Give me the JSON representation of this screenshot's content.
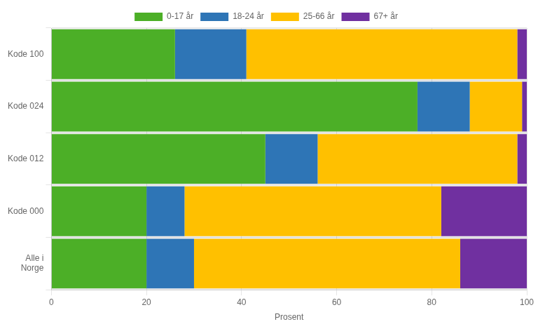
{
  "chart_data": {
    "type": "bar",
    "orientation": "horizontal",
    "stacked": true,
    "categories": [
      "Alle i\nNorge",
      "Kode 000",
      "Kode 012",
      "Kode 024",
      "Kode 100"
    ],
    "series": [
      {
        "name": "0-17 år",
        "color": "#4caf27",
        "values": [
          20,
          20,
          45,
          77,
          26
        ]
      },
      {
        "name": "18-24 år",
        "color": "#2e75b6",
        "values": [
          10,
          8,
          11,
          11,
          15
        ]
      },
      {
        "name": "25-66 år",
        "color": "#ffc000",
        "values": [
          56,
          54,
          42,
          11,
          57
        ]
      },
      {
        "name": "67+ år",
        "color": "#7030a0",
        "values": [
          14,
          18,
          2,
          1,
          2
        ]
      }
    ],
    "xlabel": "Prosent",
    "xlim": [
      0,
      100
    ],
    "xticks": [
      0,
      20,
      40,
      60,
      80,
      100
    ],
    "grid": true,
    "legend": "top"
  }
}
